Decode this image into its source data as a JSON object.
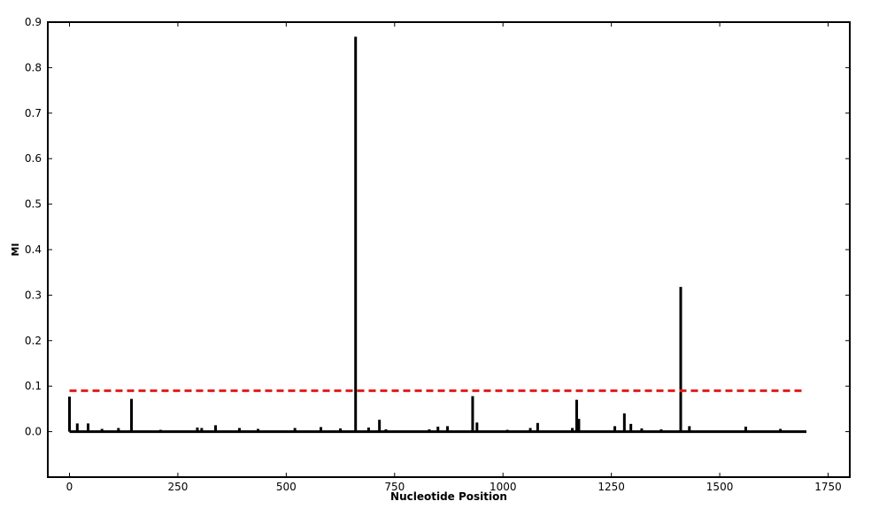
{
  "chart_data": {
    "type": "line",
    "title": "",
    "xlabel": "Nucleotide Position",
    "ylabel": "MI",
    "xlim": [
      -50,
      1800
    ],
    "ylim": [
      -0.1,
      0.9
    ],
    "x_ticks": [
      0,
      250,
      500,
      750,
      1000,
      1250,
      1500,
      1750
    ],
    "y_ticks": [
      0.0,
      0.1,
      0.2,
      0.3,
      0.4,
      0.5,
      0.6,
      0.7,
      0.8,
      0.9
    ],
    "x_tick_labels": [
      "0",
      "250",
      "500",
      "750",
      "1000",
      "1250",
      "1500",
      "1750"
    ],
    "y_tick_labels": [
      "0.0",
      "0.1",
      "0.2",
      "0.3",
      "0.4",
      "0.5",
      "0.6",
      "0.7",
      "0.8",
      "0.9"
    ],
    "grid": false,
    "series": [
      {
        "color": "#000000",
        "x_range": [
          0,
          1700
        ],
        "baseline": 0.0,
        "spikes": [
          {
            "x": 0,
            "y": 0.077
          },
          {
            "x": 18,
            "y": 0.018
          },
          {
            "x": 43,
            "y": 0.018
          },
          {
            "x": 75,
            "y": 0.006
          },
          {
            "x": 113,
            "y": 0.008
          },
          {
            "x": 143,
            "y": 0.072
          },
          {
            "x": 210,
            "y": 0.004
          },
          {
            "x": 295,
            "y": 0.009
          },
          {
            "x": 305,
            "y": 0.008
          },
          {
            "x": 337,
            "y": 0.014
          },
          {
            "x": 392,
            "y": 0.008
          },
          {
            "x": 435,
            "y": 0.006
          },
          {
            "x": 520,
            "y": 0.008
          },
          {
            "x": 580,
            "y": 0.01
          },
          {
            "x": 625,
            "y": 0.007
          },
          {
            "x": 660,
            "y": 0.868
          },
          {
            "x": 690,
            "y": 0.009
          },
          {
            "x": 715,
            "y": 0.026
          },
          {
            "x": 730,
            "y": 0.005
          },
          {
            "x": 830,
            "y": 0.005
          },
          {
            "x": 850,
            "y": 0.011
          },
          {
            "x": 872,
            "y": 0.012
          },
          {
            "x": 930,
            "y": 0.078
          },
          {
            "x": 940,
            "y": 0.02
          },
          {
            "x": 1010,
            "y": 0.004
          },
          {
            "x": 1063,
            "y": 0.008
          },
          {
            "x": 1080,
            "y": 0.019
          },
          {
            "x": 1160,
            "y": 0.008
          },
          {
            "x": 1170,
            "y": 0.07
          },
          {
            "x": 1175,
            "y": 0.028
          },
          {
            "x": 1258,
            "y": 0.012
          },
          {
            "x": 1280,
            "y": 0.04
          },
          {
            "x": 1295,
            "y": 0.017
          },
          {
            "x": 1320,
            "y": 0.007
          },
          {
            "x": 1365,
            "y": 0.005
          },
          {
            "x": 1410,
            "y": 0.318
          },
          {
            "x": 1430,
            "y": 0.012
          },
          {
            "x": 1560,
            "y": 0.011
          },
          {
            "x": 1640,
            "y": 0.006
          }
        ]
      },
      {
        "color": "#e41a1c",
        "dashed": true,
        "x": [
          0,
          1690
        ],
        "y": [
          0.09,
          0.09
        ]
      }
    ]
  }
}
